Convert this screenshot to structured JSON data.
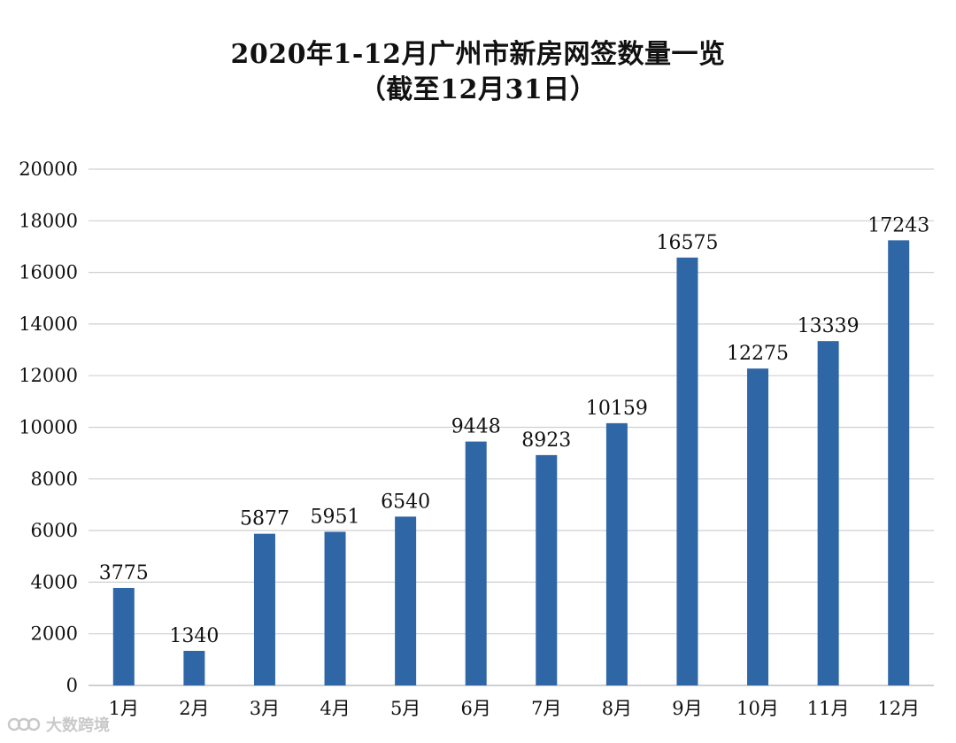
{
  "title": {
    "line1": "2020年1-12月广州市新房网签数量一览",
    "line2": "（截至12月31日）"
  },
  "watermark": {
    "text": "大数跨境",
    "icon": "logo-mark-icon"
  },
  "colors": {
    "bar": "#2e66a6",
    "grid": "#d0d0d0",
    "axis": "#bfbfbf"
  },
  "chart_data": {
    "type": "bar",
    "title": "2020年1-12月广州市新房网签数量一览",
    "subtitle": "（截至12月31日）",
    "categories": [
      "1月",
      "2月",
      "3月",
      "4月",
      "5月",
      "6月",
      "7月",
      "8月",
      "9月",
      "10月",
      "11月",
      "12月"
    ],
    "values": [
      3775,
      1340,
      5877,
      5951,
      6540,
      9448,
      8923,
      10159,
      16575,
      12275,
      13339,
      17243
    ],
    "data_labels": [
      "3775",
      "1340",
      "5877",
      "5951",
      "6540",
      "9448",
      "8923",
      "10159",
      "16575",
      "12275",
      "13339",
      "17243"
    ],
    "yticks": [
      "0",
      "2000",
      "4000",
      "6000",
      "8000",
      "10000",
      "12000",
      "14000",
      "16000",
      "18000",
      "20000"
    ],
    "ylim": [
      0,
      20000
    ],
    "xlabel": "",
    "ylabel": "",
    "grid": true,
    "legend": false
  }
}
